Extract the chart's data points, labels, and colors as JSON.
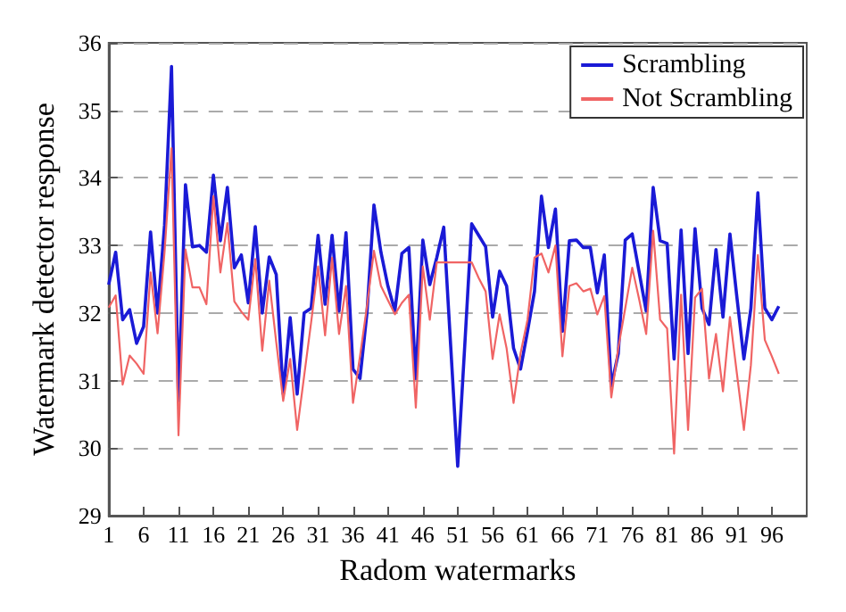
{
  "chart_data": {
    "type": "line",
    "xlabel": "Radom watermarks",
    "ylabel": "Watermark detector response",
    "x": [
      1,
      2,
      3,
      4,
      5,
      6,
      7,
      8,
      9,
      10,
      11,
      12,
      13,
      14,
      15,
      16,
      17,
      18,
      19,
      20,
      21,
      22,
      23,
      24,
      25,
      26,
      27,
      28,
      29,
      30,
      31,
      32,
      33,
      34,
      35,
      36,
      37,
      38,
      39,
      40,
      41,
      42,
      43,
      44,
      45,
      46,
      47,
      48,
      49,
      50,
      51,
      52,
      53,
      54,
      55,
      56,
      57,
      58,
      59,
      60,
      61,
      62,
      63,
      64,
      65,
      66,
      67,
      68,
      69,
      70,
      71,
      72,
      73,
      74,
      75,
      76,
      77,
      78,
      79,
      80,
      81,
      82,
      83,
      84,
      85,
      86,
      87,
      88,
      89,
      90,
      91,
      92,
      93,
      94,
      95,
      96,
      97
    ],
    "series": [
      {
        "name": "Scrambling",
        "color": "#1a1ad6",
        "values": [
          32.42,
          32.9,
          31.9,
          32.05,
          31.55,
          31.8,
          33.2,
          32.0,
          33.3,
          35.65,
          30.7,
          33.9,
          32.98,
          33.0,
          32.9,
          34.04,
          33.07,
          33.86,
          32.67,
          32.86,
          32.15,
          33.28,
          32.0,
          32.83,
          32.57,
          30.8,
          31.93,
          30.8,
          32.0,
          32.07,
          33.15,
          32.13,
          33.15,
          32.03,
          33.19,
          31.17,
          31.03,
          32.0,
          33.6,
          32.9,
          32.4,
          32.03,
          32.88,
          32.97,
          31.03,
          33.08,
          32.42,
          32.82,
          33.27,
          31.5,
          29.73,
          31.5,
          33.32,
          33.15,
          32.98,
          31.94,
          32.62,
          32.4,
          31.48,
          31.17,
          31.73,
          32.32,
          33.73,
          32.97,
          33.54,
          31.73,
          33.07,
          33.08,
          32.97,
          32.97,
          32.3,
          32.86,
          30.92,
          31.4,
          33.08,
          33.17,
          32.6,
          32.03,
          33.86,
          33.07,
          33.03,
          31.32,
          33.23,
          31.4,
          33.25,
          32.07,
          31.83,
          32.94,
          31.94,
          33.17,
          32.23,
          31.32,
          32.07,
          33.78,
          32.07,
          31.9,
          32.1
        ]
      },
      {
        "name": "Not Scrambling",
        "color": "#f06464",
        "values": [
          32.08,
          32.26,
          30.94,
          31.37,
          31.25,
          31.1,
          32.6,
          31.7,
          32.9,
          34.44,
          30.19,
          32.94,
          32.38,
          32.38,
          32.13,
          33.73,
          32.6,
          33.33,
          32.17,
          32.02,
          31.9,
          32.8,
          31.44,
          32.48,
          31.57,
          30.7,
          31.32,
          30.27,
          31.07,
          31.86,
          32.69,
          31.67,
          32.82,
          31.69,
          32.4,
          30.67,
          31.36,
          32.1,
          32.92,
          32.4,
          32.19,
          31.98,
          32.15,
          32.27,
          30.6,
          32.69,
          31.9,
          32.75,
          32.75,
          32.75,
          32.75,
          32.75,
          32.75,
          32.52,
          32.32,
          31.32,
          31.98,
          31.48,
          30.67,
          31.4,
          31.9,
          32.82,
          32.88,
          32.6,
          33.0,
          31.36,
          32.4,
          32.44,
          32.32,
          32.36,
          31.98,
          32.25,
          30.75,
          31.48,
          32.07,
          32.67,
          32.2,
          31.69,
          33.22,
          31.9,
          31.77,
          29.92,
          32.27,
          30.27,
          32.23,
          32.36,
          31.03,
          31.69,
          30.84,
          31.94,
          31.1,
          30.27,
          31.23,
          32.86,
          31.6,
          31.36,
          31.1
        ]
      }
    ],
    "xlim": [
      1,
      101
    ],
    "xticks": [
      1,
      6,
      11,
      16,
      21,
      26,
      31,
      36,
      41,
      46,
      51,
      56,
      61,
      66,
      71,
      76,
      81,
      86,
      91,
      96
    ],
    "ylim": [
      29,
      36
    ],
    "yticks": [
      29,
      30,
      31,
      32,
      33,
      34,
      35,
      36
    ],
    "grid": "y",
    "legend": "top right",
    "marker": "none",
    "line_style": "solid"
  }
}
